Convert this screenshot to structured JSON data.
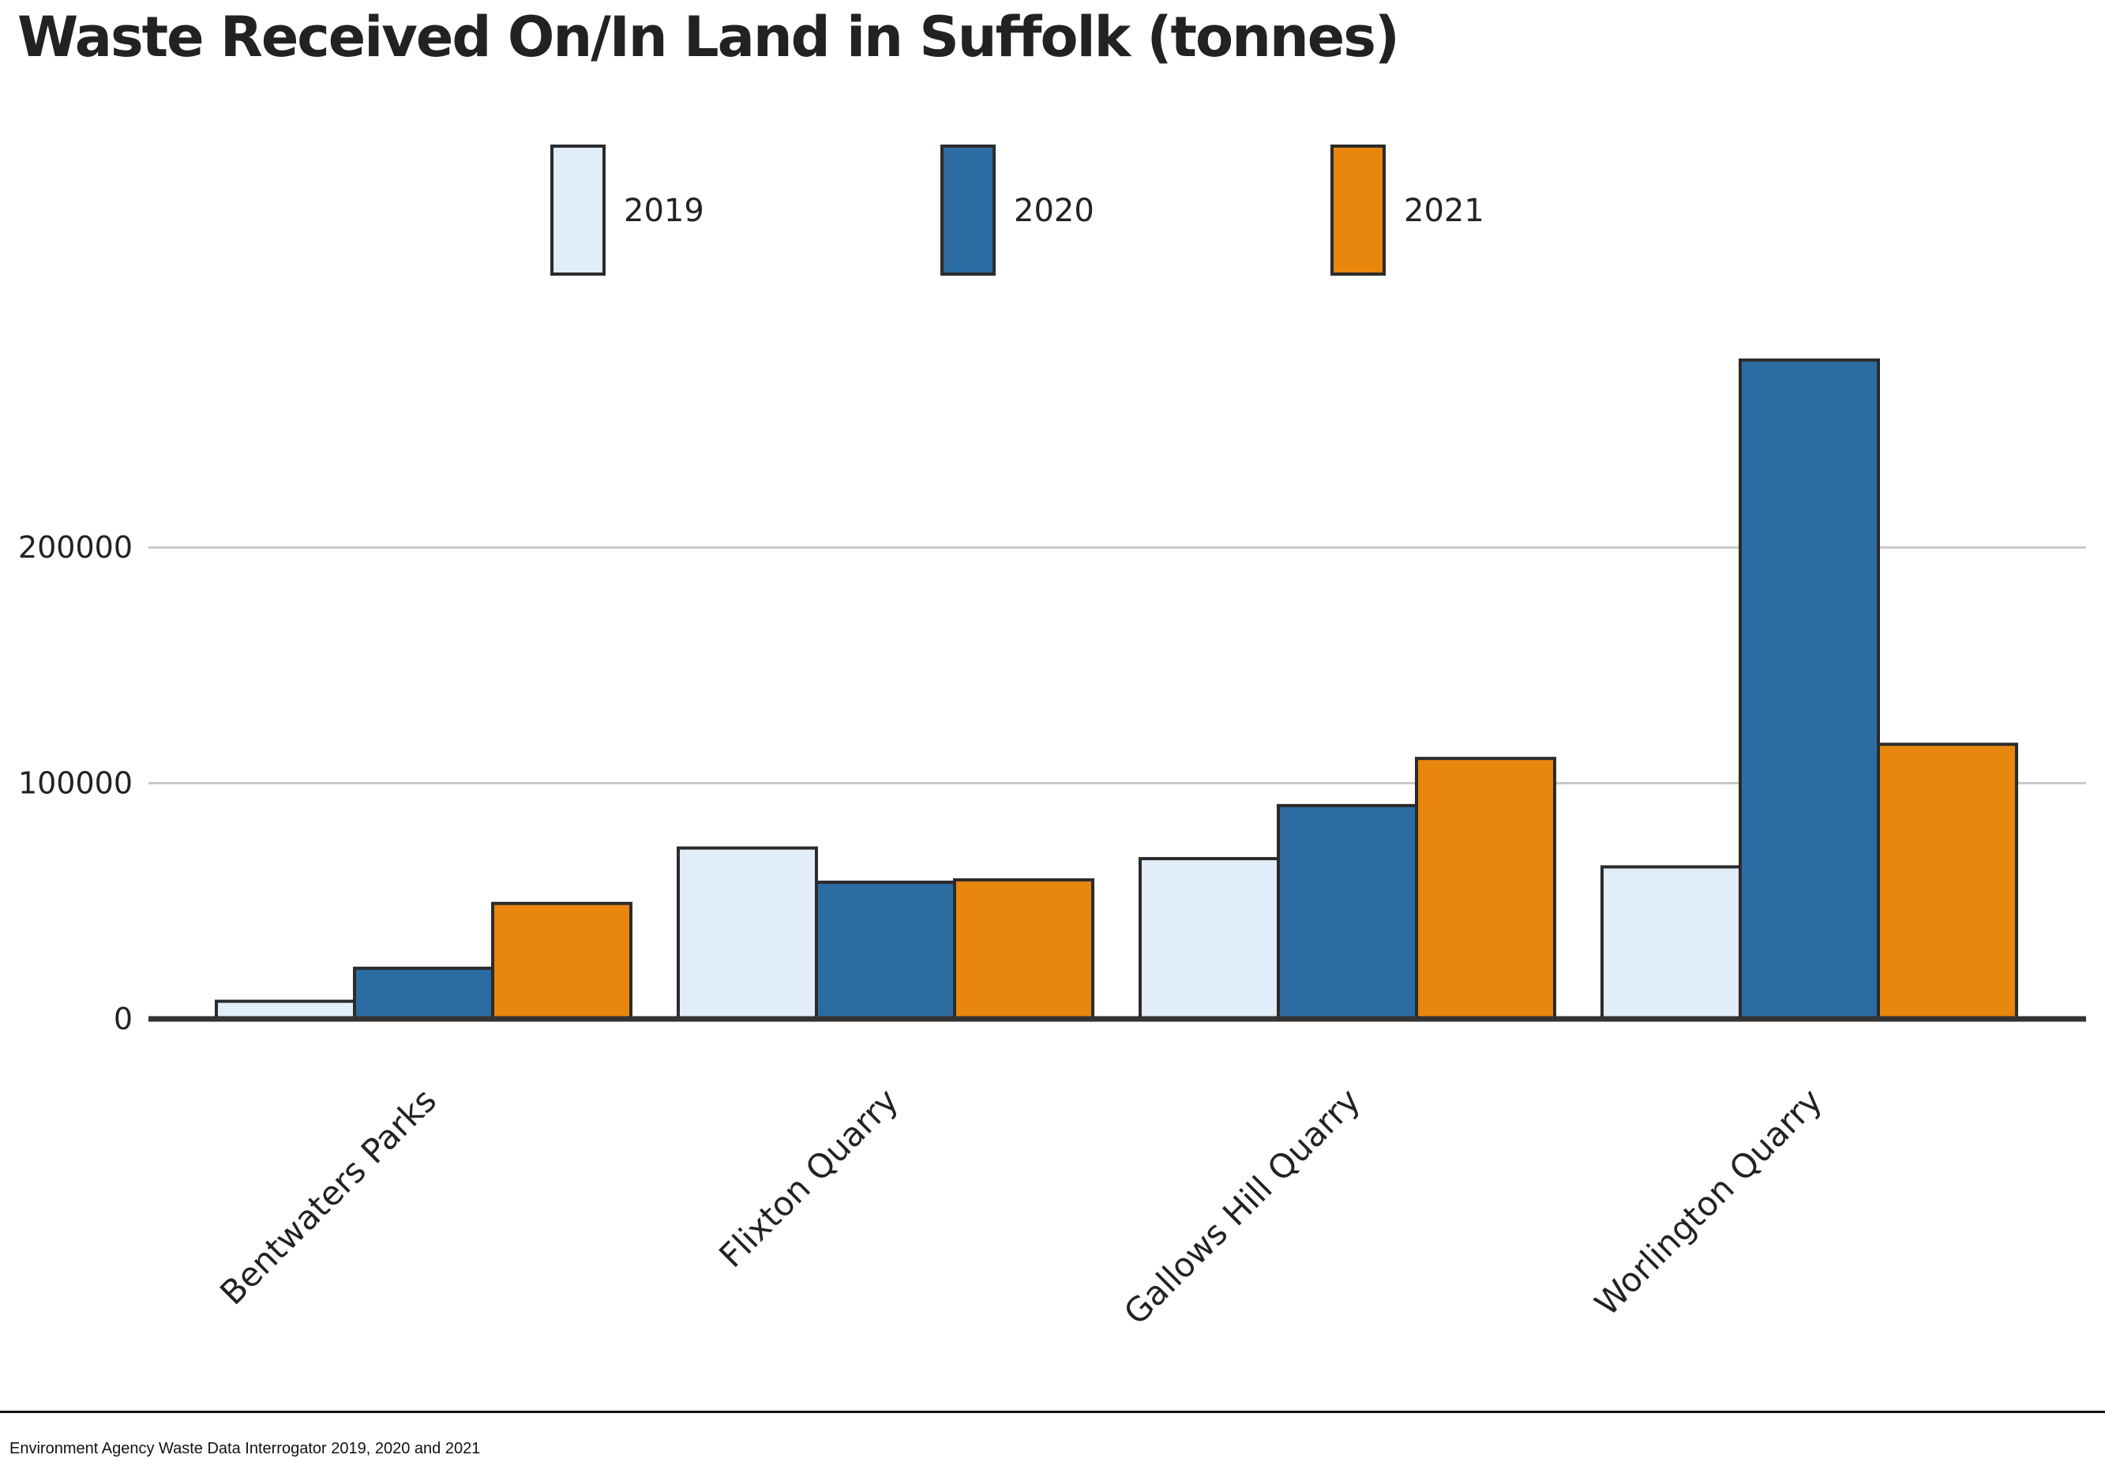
{
  "chart_data": {
    "type": "bar",
    "title": "Waste Received On/In Land in Suffolk (tonnes)",
    "xlabel": "",
    "ylabel": "",
    "categories": [
      "Bentwaters Parks",
      "Flixton Quarry",
      "Gallows Hill Quarry",
      "Worlington Quarry"
    ],
    "series": [
      {
        "name": "2019",
        "color": "#e1edf9",
        "values": [
          7500,
          72500,
          68000,
          64500
        ]
      },
      {
        "name": "2020",
        "color": "#2d6ca2",
        "values": [
          21500,
          58000,
          90500,
          279500
        ]
      },
      {
        "name": "2021",
        "color": "#e8860e",
        "values": [
          49000,
          59000,
          110500,
          116500
        ]
      }
    ],
    "yticks": [
      0,
      100000,
      200000
    ],
    "ylim": [
      0,
      300000
    ],
    "grid": true,
    "legend_position": "top-center"
  },
  "source": "Environment Agency Waste Data Interrogator 2019, 2020 and 2021"
}
